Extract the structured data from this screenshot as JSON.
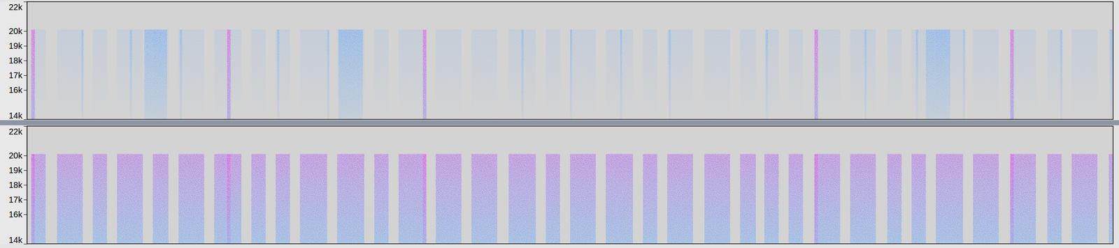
{
  "chart_data": [
    {
      "type": "heatmap",
      "xlim": [
        0,
        152
      ],
      "ylim": [
        14000,
        22000
      ],
      "yticks": [
        {
          "value": 22000,
          "label": "22k"
        },
        {
          "value": 20000,
          "label": "20k"
        },
        {
          "value": 19000,
          "label": "19k"
        },
        {
          "value": 18000,
          "label": "18k"
        },
        {
          "value": 17000,
          "label": "17k"
        },
        {
          "value": 16000,
          "label": "16k"
        },
        {
          "value": 14000,
          "label": "14k"
        }
      ],
      "tick_labels": "y",
      "zlim": [
        0,
        1
      ],
      "cells": [
        {
          "x0": 0.6,
          "x1": 2.6,
          "y0": 14000,
          "y1": 20100,
          "value": 0.15
        },
        {
          "x0": 4.2,
          "x1": 7.8,
          "y0": 14000,
          "y1": 20100,
          "value": 0.15
        },
        {
          "x0": 9.2,
          "x1": 11.2,
          "y0": 14000,
          "y1": 20100,
          "value": 0.15
        },
        {
          "x0": 12.6,
          "x1": 16.2,
          "y0": 14000,
          "y1": 20100,
          "value": 0.15
        },
        {
          "x0": 17.6,
          "x1": 19.8,
          "y0": 14000,
          "y1": 20100,
          "value": 0.15
        },
        {
          "x0": 21.2,
          "x1": 24.8,
          "y0": 14000,
          "y1": 20100,
          "value": 0.15
        },
        {
          "x0": 26.2,
          "x1": 30.0,
          "y0": 14000,
          "y1": 20100,
          "value": 0.15
        },
        {
          "x0": 31.4,
          "x1": 33.4,
          "y0": 14000,
          "y1": 20100,
          "value": 0.15
        },
        {
          "x0": 34.8,
          "x1": 36.8,
          "y0": 14000,
          "y1": 20100,
          "value": 0.15
        },
        {
          "x0": 38.2,
          "x1": 42.0,
          "y0": 14000,
          "y1": 20100,
          "value": 0.15
        },
        {
          "x0": 43.4,
          "x1": 47.2,
          "y0": 14000,
          "y1": 20100,
          "value": 0.15
        },
        {
          "x0": 48.6,
          "x1": 50.6,
          "y0": 14000,
          "y1": 20100,
          "value": 0.15
        },
        {
          "x0": 52.0,
          "x1": 55.8,
          "y0": 14000,
          "y1": 20100,
          "value": 0.15
        },
        {
          "x0": 57.2,
          "x1": 60.8,
          "y0": 14000,
          "y1": 20100,
          "value": 0.15
        },
        {
          "x0": 62.2,
          "x1": 65.8,
          "y0": 14000,
          "y1": 20100,
          "value": 0.15
        },
        {
          "x0": 67.4,
          "x1": 71.2,
          "y0": 14000,
          "y1": 20100,
          "value": 0.15
        },
        {
          "x0": 72.6,
          "x1": 74.6,
          "y0": 14000,
          "y1": 20100,
          "value": 0.15
        },
        {
          "x0": 76.0,
          "x1": 79.6,
          "y0": 14000,
          "y1": 20100,
          "value": 0.15
        },
        {
          "x0": 81.0,
          "x1": 84.8,
          "y0": 14000,
          "y1": 20100,
          "value": 0.15
        },
        {
          "x0": 86.2,
          "x1": 88.2,
          "y0": 14000,
          "y1": 20100,
          "value": 0.15
        },
        {
          "x0": 89.6,
          "x1": 93.2,
          "y0": 14000,
          "y1": 20100,
          "value": 0.15
        },
        {
          "x0": 94.8,
          "x1": 98.4,
          "y0": 14000,
          "y1": 20100,
          "value": 0.15
        },
        {
          "x0": 99.8,
          "x1": 102.0,
          "y0": 14000,
          "y1": 20100,
          "value": 0.15
        },
        {
          "x0": 103.2,
          "x1": 105.2,
          "y0": 14000,
          "y1": 20100,
          "value": 0.15
        },
        {
          "x0": 106.6,
          "x1": 108.6,
          "y0": 14000,
          "y1": 20100,
          "value": 0.15
        },
        {
          "x0": 110.2,
          "x1": 113.8,
          "y0": 14000,
          "y1": 20100,
          "value": 0.15
        },
        {
          "x0": 115.2,
          "x1": 118.8,
          "y0": 14000,
          "y1": 20100,
          "value": 0.15
        },
        {
          "x0": 120.4,
          "x1": 122.4,
          "y0": 14000,
          "y1": 20100,
          "value": 0.15
        },
        {
          "x0": 123.8,
          "x1": 125.8,
          "y0": 14000,
          "y1": 20100,
          "value": 0.15
        },
        {
          "x0": 127.2,
          "x1": 131.0,
          "y0": 14000,
          "y1": 20100,
          "value": 0.15
        },
        {
          "x0": 132.4,
          "x1": 136.0,
          "y0": 14000,
          "y1": 20100,
          "value": 0.15
        },
        {
          "x0": 137.6,
          "x1": 141.2,
          "y0": 14000,
          "y1": 20100,
          "value": 0.15
        },
        {
          "x0": 142.8,
          "x1": 144.8,
          "y0": 14000,
          "y1": 20100,
          "value": 0.15
        },
        {
          "x0": 146.2,
          "x1": 149.8,
          "y0": 14000,
          "y1": 20100,
          "value": 0.15
        },
        {
          "x0": 151.4,
          "x1": 152,
          "y0": 14000,
          "y1": 20100,
          "value": 0.15
        },
        {
          "x0": 16.4,
          "x1": 19.6,
          "y0": 14000,
          "y1": 20100,
          "value": 0.5
        },
        {
          "x0": 43.6,
          "x1": 47.0,
          "y0": 14000,
          "y1": 20100,
          "value": 0.5
        },
        {
          "x0": 125.8,
          "x1": 129.2,
          "y0": 14000,
          "y1": 20100,
          "value": 0.5
        },
        {
          "x0": 7.6,
          "x1": 7.9,
          "y0": 14000,
          "y1": 20100,
          "value": 0.45
        },
        {
          "x0": 14.4,
          "x1": 14.7,
          "y0": 14000,
          "y1": 20100,
          "value": 0.45
        },
        {
          "x0": 21.4,
          "x1": 21.7,
          "y0": 14000,
          "y1": 20100,
          "value": 0.45
        },
        {
          "x0": 35.0,
          "x1": 35.3,
          "y0": 14000,
          "y1": 20100,
          "value": 0.45
        },
        {
          "x0": 42.0,
          "x1": 42.3,
          "y0": 14000,
          "y1": 20100,
          "value": 0.45
        },
        {
          "x0": 69.2,
          "x1": 69.5,
          "y0": 14000,
          "y1": 20100,
          "value": 0.45
        },
        {
          "x0": 76.0,
          "x1": 76.3,
          "y0": 14000,
          "y1": 20100,
          "value": 0.45
        },
        {
          "x0": 83.0,
          "x1": 83.3,
          "y0": 14000,
          "y1": 20100,
          "value": 0.45
        },
        {
          "x0": 89.8,
          "x1": 90.1,
          "y0": 14000,
          "y1": 20100,
          "value": 0.45
        },
        {
          "x0": 103.4,
          "x1": 103.7,
          "y0": 14000,
          "y1": 20100,
          "value": 0.45
        },
        {
          "x0": 117.2,
          "x1": 117.5,
          "y0": 14000,
          "y1": 20100,
          "value": 0.45
        },
        {
          "x0": 124.4,
          "x1": 124.7,
          "y0": 14000,
          "y1": 20100,
          "value": 0.45
        },
        {
          "x0": 131.0,
          "x1": 131.3,
          "y0": 14000,
          "y1": 20100,
          "value": 0.45
        },
        {
          "x0": 144.6,
          "x1": 144.9,
          "y0": 14000,
          "y1": 20100,
          "value": 0.45
        },
        {
          "x0": 151.6,
          "x1": 151.9,
          "y0": 14000,
          "y1": 20100,
          "value": 0.45
        },
        {
          "x0": 0.6,
          "x1": 1.1,
          "y0": 14000,
          "y1": 20100,
          "value": 1
        },
        {
          "x0": 28.0,
          "x1": 28.5,
          "y0": 14000,
          "y1": 20100,
          "value": 1
        },
        {
          "x0": 55.4,
          "x1": 55.9,
          "y0": 14000,
          "y1": 20100,
          "value": 1
        },
        {
          "x0": 110.2,
          "x1": 110.7,
          "y0": 14000,
          "y1": 20100,
          "value": 1
        },
        {
          "x0": 137.6,
          "x1": 138.1,
          "y0": 14000,
          "y1": 20100,
          "value": 1
        }
      ]
    },
    {
      "type": "heatmap",
      "xlim": [
        0,
        152
      ],
      "ylim": [
        14000,
        22000
      ],
      "yticks": [
        {
          "value": 22000,
          "label": "22k"
        },
        {
          "value": 20000,
          "label": "20k"
        },
        {
          "value": 19000,
          "label": "19k"
        },
        {
          "value": 18000,
          "label": "18k"
        },
        {
          "value": 17000,
          "label": "17k"
        },
        {
          "value": 16000,
          "label": "16k"
        },
        {
          "value": 14000,
          "label": "14k"
        }
      ],
      "tick_labels": "y",
      "zlim": [
        0,
        1
      ],
      "cells": [
        {
          "x0": 0.6,
          "x1": 2.6,
          "y0": 14000,
          "y1": 20100,
          "value": 0.8
        },
        {
          "x0": 4.2,
          "x1": 7.8,
          "y0": 14000,
          "y1": 20100,
          "value": 0.8
        },
        {
          "x0": 9.2,
          "x1": 11.2,
          "y0": 14000,
          "y1": 20100,
          "value": 0.8
        },
        {
          "x0": 12.6,
          "x1": 16.2,
          "y0": 14000,
          "y1": 20100,
          "value": 0.8
        },
        {
          "x0": 17.6,
          "x1": 19.8,
          "y0": 14000,
          "y1": 20100,
          "value": 0.8
        },
        {
          "x0": 21.2,
          "x1": 24.8,
          "y0": 14000,
          "y1": 20100,
          "value": 0.8
        },
        {
          "x0": 26.2,
          "x1": 30.0,
          "y0": 14000,
          "y1": 20100,
          "value": 0.8
        },
        {
          "x0": 31.4,
          "x1": 33.4,
          "y0": 14000,
          "y1": 20100,
          "value": 0.8
        },
        {
          "x0": 34.8,
          "x1": 36.8,
          "y0": 14000,
          "y1": 20100,
          "value": 0.8
        },
        {
          "x0": 38.2,
          "x1": 42.0,
          "y0": 14000,
          "y1": 20100,
          "value": 0.8
        },
        {
          "x0": 43.4,
          "x1": 47.2,
          "y0": 14000,
          "y1": 20100,
          "value": 0.8
        },
        {
          "x0": 48.6,
          "x1": 50.6,
          "y0": 14000,
          "y1": 20100,
          "value": 0.8
        },
        {
          "x0": 52.0,
          "x1": 55.8,
          "y0": 14000,
          "y1": 20100,
          "value": 0.8
        },
        {
          "x0": 57.2,
          "x1": 60.8,
          "y0": 14000,
          "y1": 20100,
          "value": 0.8
        },
        {
          "x0": 62.2,
          "x1": 65.8,
          "y0": 14000,
          "y1": 20100,
          "value": 0.8
        },
        {
          "x0": 67.4,
          "x1": 71.2,
          "y0": 14000,
          "y1": 20100,
          "value": 0.8
        },
        {
          "x0": 72.6,
          "x1": 74.6,
          "y0": 14000,
          "y1": 20100,
          "value": 0.8
        },
        {
          "x0": 76.0,
          "x1": 79.6,
          "y0": 14000,
          "y1": 20100,
          "value": 0.8
        },
        {
          "x0": 81.0,
          "x1": 84.8,
          "y0": 14000,
          "y1": 20100,
          "value": 0.8
        },
        {
          "x0": 86.2,
          "x1": 88.2,
          "y0": 14000,
          "y1": 20100,
          "value": 0.8
        },
        {
          "x0": 89.6,
          "x1": 93.2,
          "y0": 14000,
          "y1": 20100,
          "value": 0.8
        },
        {
          "x0": 94.8,
          "x1": 98.4,
          "y0": 14000,
          "y1": 20100,
          "value": 0.8
        },
        {
          "x0": 99.8,
          "x1": 102.0,
          "y0": 14000,
          "y1": 20100,
          "value": 0.8
        },
        {
          "x0": 103.2,
          "x1": 105.2,
          "y0": 14000,
          "y1": 20100,
          "value": 0.8
        },
        {
          "x0": 106.6,
          "x1": 108.6,
          "y0": 14000,
          "y1": 20100,
          "value": 0.8
        },
        {
          "x0": 110.2,
          "x1": 113.8,
          "y0": 14000,
          "y1": 20100,
          "value": 0.8
        },
        {
          "x0": 115.2,
          "x1": 118.8,
          "y0": 14000,
          "y1": 20100,
          "value": 0.8
        },
        {
          "x0": 120.4,
          "x1": 122.4,
          "y0": 14000,
          "y1": 20100,
          "value": 0.8
        },
        {
          "x0": 123.8,
          "x1": 125.8,
          "y0": 14000,
          "y1": 20100,
          "value": 0.8
        },
        {
          "x0": 127.2,
          "x1": 131.0,
          "y0": 14000,
          "y1": 20100,
          "value": 0.8
        },
        {
          "x0": 132.4,
          "x1": 136.0,
          "y0": 14000,
          "y1": 20100,
          "value": 0.8
        },
        {
          "x0": 137.6,
          "x1": 141.2,
          "y0": 14000,
          "y1": 20100,
          "value": 0.8
        },
        {
          "x0": 142.8,
          "x1": 144.8,
          "y0": 14000,
          "y1": 20100,
          "value": 0.8
        },
        {
          "x0": 146.2,
          "x1": 149.8,
          "y0": 14000,
          "y1": 20100,
          "value": 0.8
        },
        {
          "x0": 151.4,
          "x1": 152,
          "y0": 14000,
          "y1": 20100,
          "value": 0.8
        },
        {
          "x0": 0.6,
          "x1": 1.1,
          "y0": 14000,
          "y1": 20100,
          "value": 1
        },
        {
          "x0": 28.0,
          "x1": 28.5,
          "y0": 14000,
          "y1": 20100,
          "value": 1
        },
        {
          "x0": 55.4,
          "x1": 55.9,
          "y0": 14000,
          "y1": 20100,
          "value": 1
        },
        {
          "x0": 110.2,
          "x1": 110.7,
          "y0": 14000,
          "y1": 20100,
          "value": 1
        },
        {
          "x0": 137.6,
          "x1": 138.1,
          "y0": 14000,
          "y1": 20100,
          "value": 1
        }
      ]
    }
  ]
}
